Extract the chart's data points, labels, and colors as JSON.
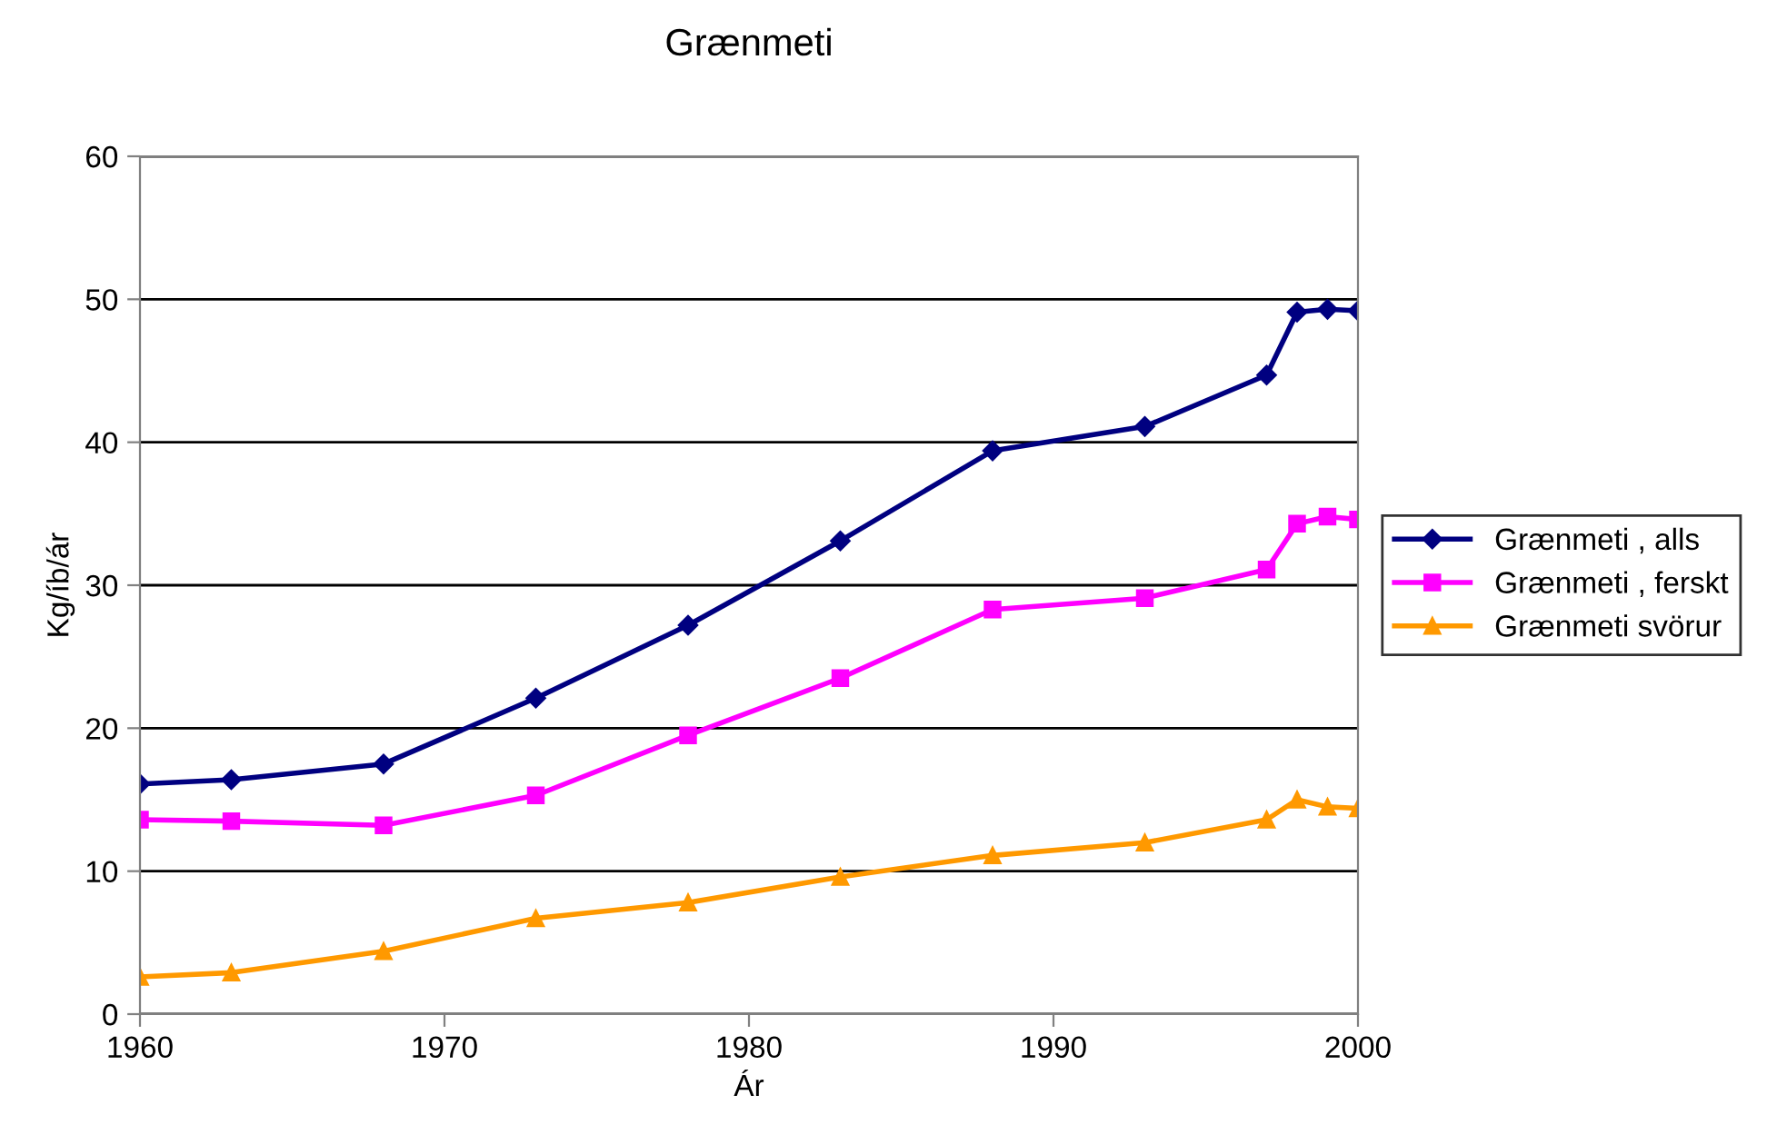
{
  "chart_data": {
    "type": "line",
    "title": "Grænmeti",
    "xlabel": "Ár",
    "ylabel": "Kg/íb/ár",
    "x": [
      1960,
      1963,
      1968,
      1973,
      1978,
      1983,
      1988,
      1993,
      1997,
      1998,
      1999,
      2000
    ],
    "series": [
      {
        "name": "Grænmeti , alls",
        "color": "#000080",
        "marker": "diamond",
        "values": [
          16.1,
          16.4,
          17.5,
          22.1,
          27.2,
          33.1,
          39.4,
          41.1,
          44.7,
          49.1,
          49.3,
          49.2
        ]
      },
      {
        "name": "Grænmeti , ferskt",
        "color": "#ff00ff",
        "marker": "square",
        "values": [
          13.6,
          13.5,
          13.2,
          15.3,
          19.5,
          23.5,
          28.3,
          29.1,
          31.1,
          34.3,
          34.8,
          34.6
        ]
      },
      {
        "name": "Grænmeti svörur",
        "color": "#ff9900",
        "marker": "triangle",
        "values": [
          2.6,
          2.9,
          4.4,
          6.7,
          7.8,
          9.6,
          11.1,
          12.0,
          13.6,
          15.0,
          14.5,
          14.4
        ]
      }
    ],
    "xlim": [
      1960,
      2000
    ],
    "xticks": [
      1960,
      1970,
      1980,
      1990,
      2000
    ],
    "ylim": [
      0,
      60
    ],
    "yticks": [
      0,
      10,
      20,
      30,
      40,
      50,
      60
    ],
    "grid": "y",
    "legend": "right"
  }
}
